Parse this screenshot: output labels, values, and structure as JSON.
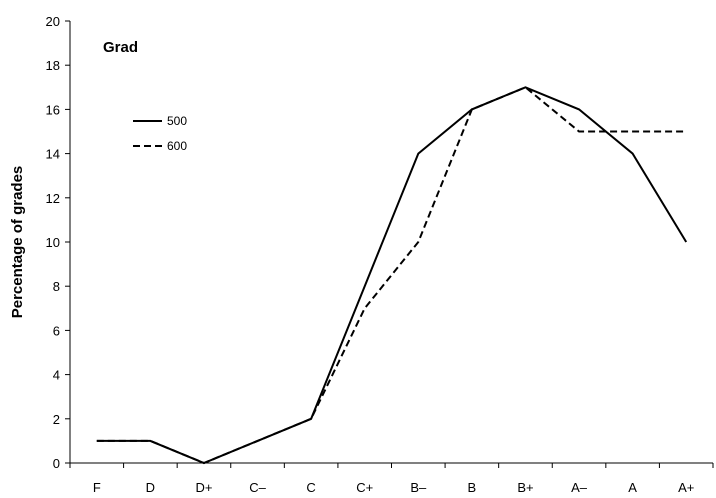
{
  "chart_data": {
    "type": "line",
    "title": "Grad",
    "xlabel": "",
    "ylabel": "Percentage of grades",
    "categories": [
      "F",
      "D",
      "D+",
      "C–",
      "C",
      "C+",
      "B–",
      "B",
      "B+",
      "A–",
      "A",
      "A+"
    ],
    "ylim": [
      0,
      20
    ],
    "yticks": [
      "0",
      "2",
      "4",
      "6",
      "8",
      "10",
      "12",
      "14",
      "16",
      "18",
      "20"
    ],
    "grid": false,
    "legend_position": "upper-left",
    "series": [
      {
        "name": "500",
        "style": "solid",
        "color": "#000000",
        "values": [
          1,
          1,
          0,
          1,
          2,
          8,
          14,
          16,
          17,
          16,
          14,
          10
        ]
      },
      {
        "name": "600",
        "style": "dashed",
        "color": "#000000",
        "values": [
          1,
          1,
          0,
          1,
          2,
          7,
          10,
          16,
          17,
          15,
          15,
          15
        ]
      }
    ]
  }
}
